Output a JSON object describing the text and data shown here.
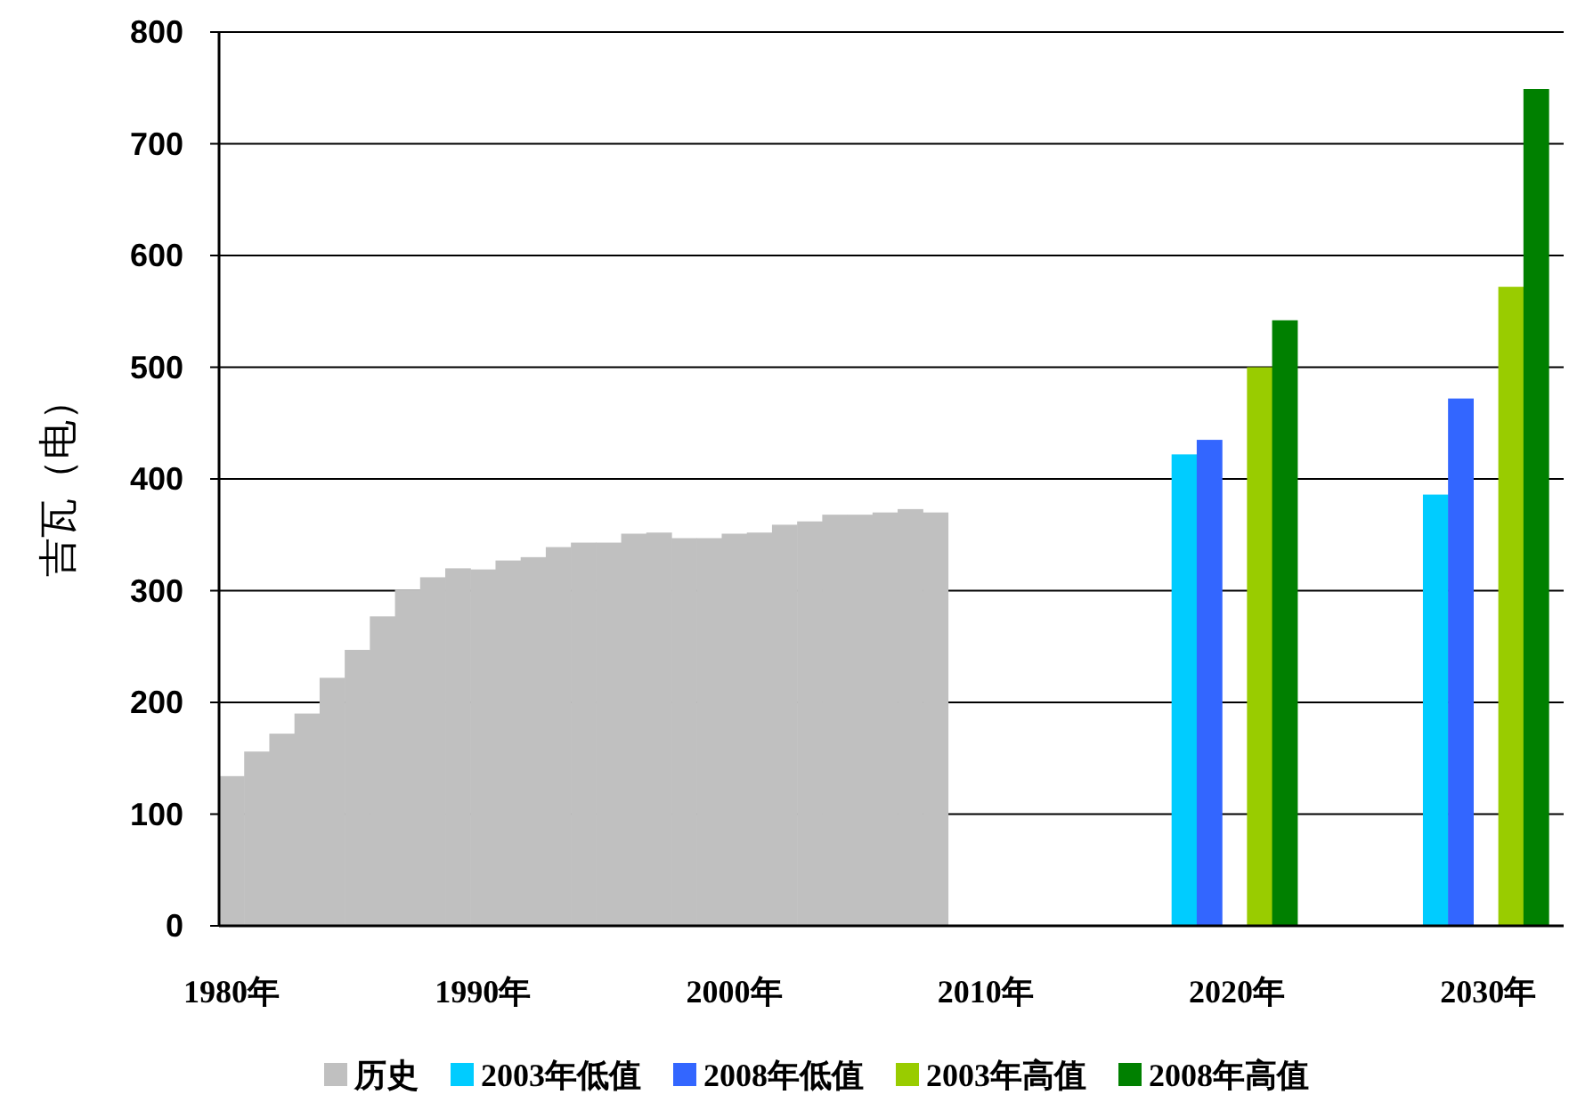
{
  "chart_data": {
    "type": "bar",
    "ylabel": "吉瓦（电）",
    "xlim": [
      1979.5,
      2033
    ],
    "xticks": [
      {
        "value": 1980,
        "label": "1980年"
      },
      {
        "value": 1990,
        "label": "1990年"
      },
      {
        "value": 2000,
        "label": "2000年"
      },
      {
        "value": 2010,
        "label": "2010年"
      },
      {
        "value": 2020,
        "label": "2020年"
      },
      {
        "value": 2030,
        "label": "2030年"
      }
    ],
    "ylim": [
      0,
      800
    ],
    "yticks": [
      0,
      100,
      200,
      300,
      400,
      500,
      600,
      700,
      800
    ],
    "grid": "y",
    "legend": "bottom",
    "series": [
      {
        "name": "历史",
        "color": "#c0c0c0",
        "x": [
          1980,
          1981,
          1982,
          1983,
          1984,
          1985,
          1986,
          1987,
          1988,
          1989,
          1990,
          1991,
          1992,
          1993,
          1994,
          1995,
          1996,
          1997,
          1998,
          1999,
          2000,
          2001,
          2002,
          2003,
          2004,
          2005,
          2006,
          2007,
          2008
        ],
        "values": [
          134,
          156,
          172,
          190,
          222,
          247,
          277,
          301,
          312,
          320,
          319,
          327,
          330,
          339,
          343,
          343,
          351,
          352,
          347,
          347,
          351,
          352,
          359,
          362,
          368,
          368,
          370,
          373,
          370
        ]
      },
      {
        "name": "2003年低值",
        "color": "#00ccff",
        "x": [
          2020,
          2030
        ],
        "values": [
          422,
          386
        ]
      },
      {
        "name": "2008年低值",
        "color": "#3366ff",
        "x": [
          2020,
          2030
        ],
        "values": [
          435,
          472
        ]
      },
      {
        "name": "2003年高值",
        "color": "#99cc00",
        "x": [
          2020,
          2030
        ],
        "values": [
          500,
          572
        ]
      },
      {
        "name": "2008年高值",
        "color": "#008000",
        "x": [
          2020,
          2030
        ],
        "values": [
          542,
          749
        ]
      }
    ]
  }
}
